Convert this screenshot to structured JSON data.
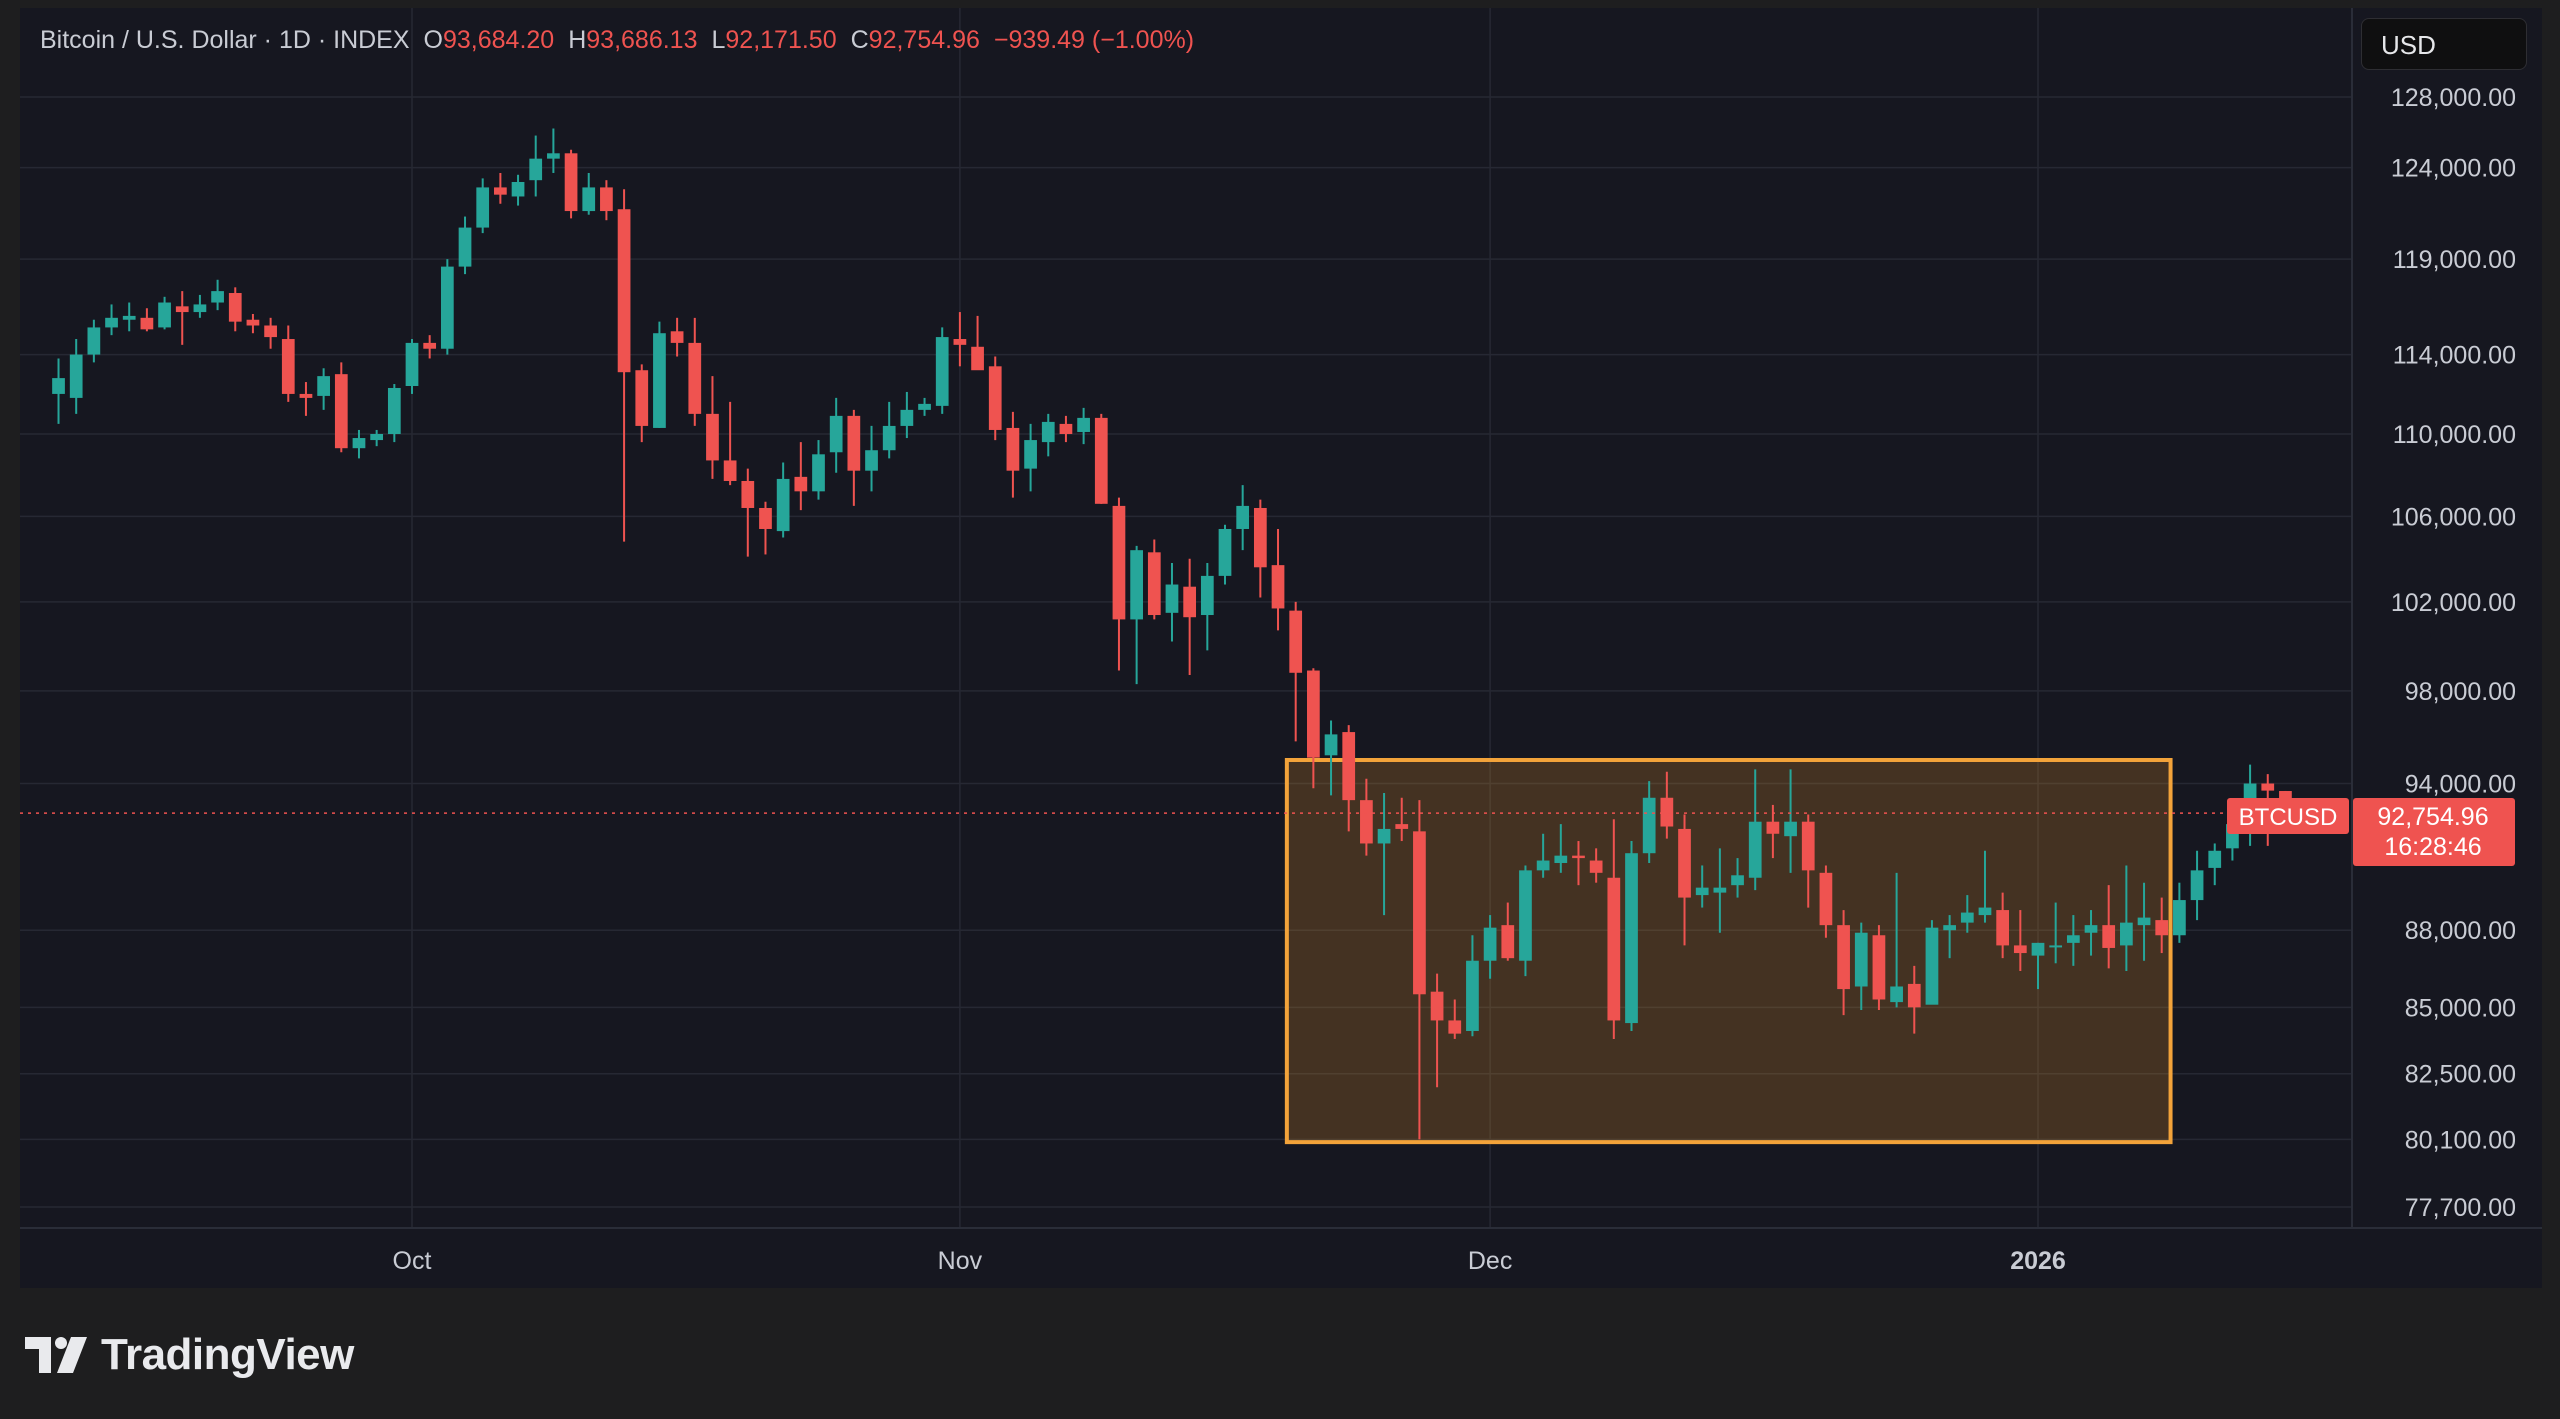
{
  "header": {
    "symbol": "Bitcoin / U.S. Dollar · 1D · INDEX",
    "open_label": "O",
    "open": "93,684.20",
    "high_label": "H",
    "high": "93,686.13",
    "low_label": "L",
    "low": "92,171.50",
    "close_label": "C",
    "close": "92,754.96",
    "change": "−939.49 (−1.00%)"
  },
  "currency_button": "USD",
  "price_tag": {
    "symbol": "BTCUSD",
    "price": "92,754.96",
    "countdown": "16:28:46"
  },
  "branding": {
    "name": "TradingView"
  },
  "colors": {
    "up": "#26a69a",
    "down": "#ef5350",
    "highlight_border": "#f3a33a",
    "highlight_fill": "rgba(231,150,40,0.22)",
    "background": "#161720",
    "grid": "#262833"
  },
  "chart_data": {
    "type": "candlestick",
    "title": "Bitcoin / U.S. Dollar · 1D · INDEX",
    "y_scale": "log",
    "y_ticks": [
      "128,000.00",
      "124,000.00",
      "119,000.00",
      "114,000.00",
      "110,000.00",
      "106,000.00",
      "102,000.00",
      "98,000.00",
      "94,000.00",
      "88,000.00",
      "85,000.00",
      "82,500.00",
      "80,100.00",
      "77,700.00"
    ],
    "x_ticks": [
      {
        "label": "Oct",
        "date": "2025-10-01",
        "bold": false
      },
      {
        "label": "Nov",
        "date": "2025-11-01",
        "bold": false
      },
      {
        "label": "Dec",
        "date": "2025-12-01",
        "bold": false
      },
      {
        "label": "2026",
        "date": "2026-01-01",
        "bold": true
      }
    ],
    "first_date": "2025-09-11",
    "last_price": 92754.96,
    "highlight": {
      "start": "2025-11-20",
      "end": "2026-01-08",
      "low": 80000,
      "high": 95000
    },
    "candles": [
      [
        112000,
        113800,
        110500,
        112800
      ],
      [
        111800,
        114800,
        111000,
        114000
      ],
      [
        114000,
        115800,
        113600,
        115400
      ],
      [
        115400,
        116600,
        115000,
        115900
      ],
      [
        115800,
        116700,
        115200,
        116000
      ],
      [
        115900,
        116400,
        115200,
        115300
      ],
      [
        115400,
        117000,
        115300,
        116700
      ],
      [
        116500,
        117300,
        114500,
        116200
      ],
      [
        116200,
        117100,
        115900,
        116600
      ],
      [
        116700,
        117900,
        116300,
        117300
      ],
      [
        117200,
        117500,
        115200,
        115700
      ],
      [
        115800,
        116100,
        115100,
        115500
      ],
      [
        115500,
        115900,
        114300,
        114900
      ],
      [
        114800,
        115500,
        111600,
        112000
      ],
      [
        112000,
        112600,
        110900,
        111800
      ],
      [
        111900,
        113300,
        111200,
        112900
      ],
      [
        113000,
        113600,
        109100,
        109300
      ],
      [
        109300,
        110200,
        108800,
        109800
      ],
      [
        109700,
        110200,
        109400,
        110000
      ],
      [
        110000,
        112500,
        109600,
        112300
      ],
      [
        112400,
        114800,
        112000,
        114600
      ],
      [
        114600,
        115000,
        113800,
        114300
      ],
      [
        114300,
        119000,
        114000,
        118600
      ],
      [
        118600,
        121300,
        118200,
        120700
      ],
      [
        120700,
        123400,
        120400,
        122900
      ],
      [
        122900,
        123700,
        122000,
        122500
      ],
      [
        122400,
        123600,
        121900,
        123200
      ],
      [
        123300,
        125800,
        122400,
        124500
      ],
      [
        124500,
        126200,
        123700,
        124800
      ],
      [
        124800,
        125000,
        121200,
        121600
      ],
      [
        121600,
        123700,
        121400,
        122900
      ],
      [
        122900,
        123300,
        121100,
        121600
      ],
      [
        121700,
        122800,
        104800,
        113100
      ],
      [
        113200,
        113500,
        109600,
        110400
      ],
      [
        110300,
        115700,
        110300,
        115100
      ],
      [
        115200,
        115900,
        113900,
        114600
      ],
      [
        114600,
        115900,
        110400,
        111000
      ],
      [
        111000,
        112900,
        107800,
        108700
      ],
      [
        108700,
        111600,
        107500,
        107700
      ],
      [
        107700,
        108300,
        104100,
        106400
      ],
      [
        106400,
        106700,
        104200,
        105400
      ],
      [
        105300,
        108600,
        105000,
        107800
      ],
      [
        107900,
        109600,
        106300,
        107200
      ],
      [
        107200,
        109700,
        106800,
        109000
      ],
      [
        109100,
        111800,
        108100,
        110900
      ],
      [
        110900,
        111200,
        106500,
        108200
      ],
      [
        108200,
        110400,
        107200,
        109200
      ],
      [
        109200,
        111600,
        108800,
        110400
      ],
      [
        110400,
        112100,
        109800,
        111200
      ],
      [
        111200,
        111800,
        110900,
        111500
      ],
      [
        111400,
        115400,
        111000,
        114900
      ],
      [
        114800,
        116200,
        113400,
        114500
      ],
      [
        114400,
        116000,
        113600,
        113200
      ],
      [
        113400,
        113900,
        109700,
        110200
      ],
      [
        110300,
        111100,
        106900,
        108200
      ],
      [
        108300,
        110500,
        107200,
        109700
      ],
      [
        109600,
        111000,
        108900,
        110600
      ],
      [
        110500,
        110900,
        109600,
        110000
      ],
      [
        110100,
        111300,
        109500,
        110800
      ],
      [
        110800,
        111000,
        106600,
        106600
      ],
      [
        106500,
        106900,
        98900,
        101200
      ],
      [
        101200,
        104600,
        98300,
        104400
      ],
      [
        104300,
        104900,
        101200,
        101400
      ],
      [
        101500,
        103800,
        100200,
        102800
      ],
      [
        102700,
        104000,
        98700,
        101300
      ],
      [
        101400,
        103800,
        99800,
        103200
      ],
      [
        103200,
        105600,
        102800,
        105400
      ],
      [
        105400,
        107500,
        104400,
        106500
      ],
      [
        106400,
        106800,
        102200,
        103600
      ],
      [
        103700,
        105400,
        100700,
        101700
      ],
      [
        101600,
        102000,
        95800,
        98800
      ],
      [
        98900,
        99000,
        93800,
        95100
      ],
      [
        95200,
        96700,
        93500,
        96100
      ],
      [
        96200,
        96500,
        92000,
        93300
      ],
      [
        93300,
        94200,
        91000,
        91500
      ],
      [
        91500,
        93600,
        88600,
        92100
      ],
      [
        92300,
        93400,
        91600,
        92100
      ],
      [
        92000,
        93300,
        80100,
        85500
      ],
      [
        85600,
        86300,
        82000,
        84500
      ],
      [
        84500,
        85300,
        83800,
        84000
      ],
      [
        84100,
        87800,
        83900,
        86800
      ],
      [
        86800,
        88600,
        86100,
        88100
      ],
      [
        88200,
        89100,
        86800,
        86900
      ],
      [
        86800,
        90600,
        86200,
        90400
      ],
      [
        90400,
        91900,
        90100,
        90800
      ],
      [
        90700,
        92300,
        90300,
        91000
      ],
      [
        91000,
        91600,
        89800,
        90900
      ],
      [
        90800,
        91300,
        89900,
        90300
      ],
      [
        90100,
        92500,
        83800,
        84500
      ],
      [
        84400,
        91600,
        84100,
        91100
      ],
      [
        91100,
        94100,
        90700,
        93400
      ],
      [
        93400,
        94500,
        91700,
        92200
      ],
      [
        92100,
        92700,
        87400,
        89300
      ],
      [
        89400,
        90600,
        88900,
        89700
      ],
      [
        89500,
        91300,
        87900,
        89700
      ],
      [
        89800,
        90900,
        89300,
        90200
      ],
      [
        90100,
        94600,
        89600,
        92400
      ],
      [
        92400,
        93100,
        90900,
        91900
      ],
      [
        91800,
        94600,
        90300,
        92400
      ],
      [
        92400,
        92700,
        88900,
        90400
      ],
      [
        90300,
        90600,
        87700,
        88200
      ],
      [
        88200,
        88800,
        84700,
        85700
      ],
      [
        85800,
        88300,
        84900,
        87900
      ],
      [
        87800,
        88200,
        84900,
        85300
      ],
      [
        85200,
        90300,
        85000,
        85800
      ],
      [
        85900,
        86600,
        84000,
        85000
      ],
      [
        85100,
        88400,
        85200,
        88100
      ],
      [
        88000,
        88600,
        86900,
        88200
      ],
      [
        88300,
        89400,
        87900,
        88700
      ],
      [
        88600,
        91200,
        88300,
        88900
      ],
      [
        88800,
        89500,
        86900,
        87400
      ],
      [
        87400,
        88800,
        86400,
        87100
      ],
      [
        87000,
        87500,
        85700,
        87500
      ],
      [
        87400,
        89100,
        86700,
        87400
      ],
      [
        87500,
        88600,
        86600,
        87800
      ],
      [
        87900,
        88800,
        87000,
        88200
      ],
      [
        88200,
        89800,
        86500,
        87300
      ],
      [
        87400,
        90600,
        86400,
        88300
      ],
      [
        88200,
        89900,
        86800,
        88500
      ],
      [
        88400,
        89300,
        87100,
        87800
      ],
      [
        87800,
        89900,
        87500,
        89200
      ],
      [
        89200,
        91200,
        88400,
        90400
      ],
      [
        90500,
        91500,
        89800,
        91200
      ],
      [
        91300,
        92400,
        90800,
        92300
      ],
      [
        92300,
        94800,
        91400,
        94000
      ],
      [
        94000,
        94400,
        91400,
        93700
      ],
      [
        93684,
        93686,
        92171,
        92755
      ]
    ]
  }
}
